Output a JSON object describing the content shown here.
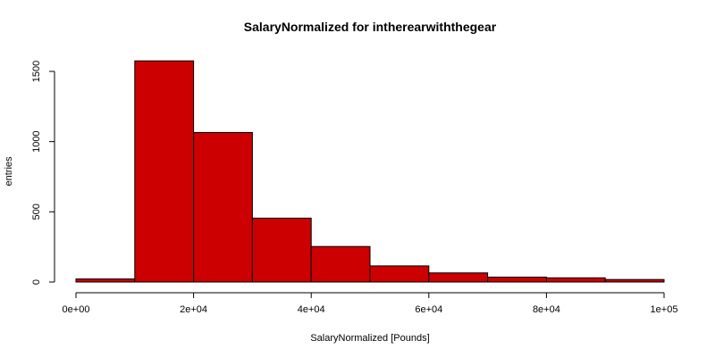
{
  "chart_data": {
    "type": "bar",
    "title": "SalaryNormalized for intherearwiththegear",
    "xlabel": "SalaryNormalized [Pounds]",
    "ylabel": "entries",
    "bin_edges": [
      0,
      10000,
      20000,
      30000,
      40000,
      50000,
      60000,
      70000,
      80000,
      90000,
      100000
    ],
    "values": [
      22,
      1575,
      1065,
      455,
      253,
      115,
      65,
      35,
      30,
      18
    ],
    "xlim": [
      0,
      100000
    ],
    "ylim": [
      0,
      1500
    ],
    "xticks": [
      0,
      20000,
      40000,
      60000,
      80000,
      100000
    ],
    "xtick_labels": [
      "0e+00",
      "2e+04",
      "4e+04",
      "6e+04",
      "8e+04",
      "1e+05"
    ],
    "yticks": [
      0,
      500,
      1000,
      1500
    ],
    "ytick_labels": [
      "0",
      "500",
      "1000",
      "1500"
    ],
    "bar_color": "#cc0000",
    "grid": false
  }
}
